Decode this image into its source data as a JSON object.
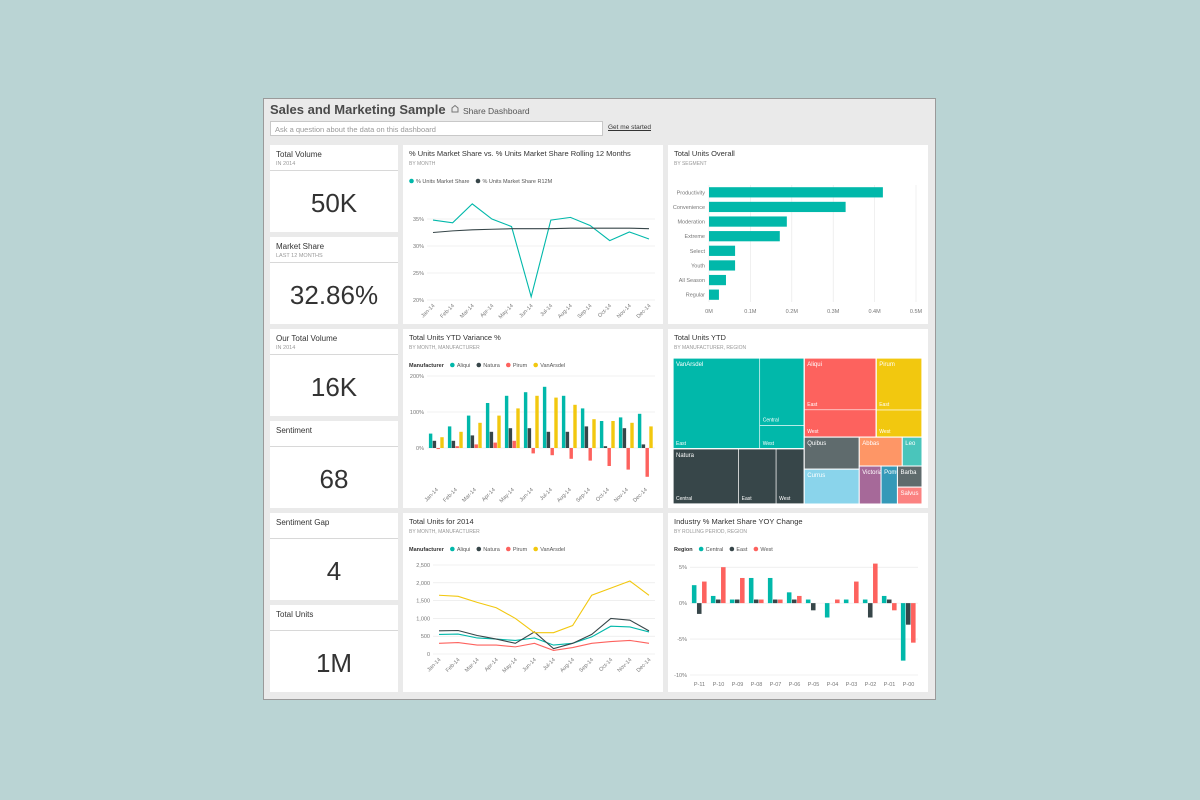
{
  "header": {
    "title": "Sales and Marketing Sample",
    "share": "Share Dashboard",
    "qa_placeholder": "Ask a question about the data on this dashboard",
    "qa_link": "Get me started"
  },
  "kpis": [
    {
      "title": "Total Volume",
      "subtitle": "IN 2014",
      "value": "50K"
    },
    {
      "title": "Market Share",
      "subtitle": "LAST 12 MONTHS",
      "value": "32.86%"
    },
    {
      "title": "Our Total Volume",
      "subtitle": "IN 2014",
      "value": "16K"
    },
    {
      "title": "Sentiment",
      "value": "68"
    },
    {
      "title": "Sentiment Gap",
      "value": "4"
    },
    {
      "title": "Total Units",
      "value": "1M"
    }
  ],
  "chart_data": [
    {
      "type": "line",
      "title": "% Units Market Share vs. % Units Market Share Rolling 12 Months",
      "subtitle": "BY MONTH",
      "categories": [
        "Jan-14",
        "Feb-14",
        "Mar-14",
        "Apr-14",
        "May-14",
        "Jun-14",
        "Jul-14",
        "Aug-14",
        "Sep-14",
        "Oct-14",
        "Nov-14",
        "Dec-14"
      ],
      "series": [
        {
          "name": "% Units Market Share",
          "color": "#01b8aa",
          "values": [
            34.8,
            34.3,
            37.8,
            35,
            33.6,
            20.6,
            34.8,
            35.3,
            33.8,
            31,
            32.6,
            31.3
          ]
        },
        {
          "name": "% Units Market Share R12M",
          "color": "#374649",
          "values": [
            32.5,
            32.8,
            33,
            33.1,
            33.2,
            33.2,
            33.2,
            33.3,
            33.3,
            33.3,
            33.3,
            33.2
          ]
        }
      ],
      "ylim": [
        20,
        40
      ],
      "yticks": [
        {
          "value": 20,
          "label": "20%"
        },
        {
          "value": 25,
          "label": "25%"
        },
        {
          "value": 30,
          "label": "30%"
        },
        {
          "value": 35,
          "label": "35%"
        }
      ],
      "grid": true
    },
    {
      "type": "bar",
      "title": "Total Units YTD Variance %",
      "subtitle": "BY MONTH, MANUFACTURER",
      "legend_title": "Manufacturer",
      "categories": [
        "Jan-14",
        "Feb-14",
        "Mar-14",
        "Apr-14",
        "May-14",
        "Jun-14",
        "Jul-14",
        "Aug-14",
        "Sep-14",
        "Oct-14",
        "Nov-14",
        "Dec-14"
      ],
      "series": [
        {
          "name": "Aliqui",
          "color": "#01b8aa",
          "values": [
            40,
            60,
            90,
            125,
            145,
            155,
            170,
            145,
            110,
            75,
            85,
            95
          ]
        },
        {
          "name": "Natura",
          "color": "#374649",
          "values": [
            20,
            20,
            35,
            45,
            55,
            55,
            45,
            45,
            60,
            5,
            55,
            10
          ]
        },
        {
          "name": "Pirum",
          "color": "#fd625e",
          "values": [
            -3,
            5,
            10,
            15,
            20,
            -15,
            -20,
            -30,
            -35,
            -50,
            -60,
            -80
          ]
        },
        {
          "name": "VanArsdel",
          "color": "#f2c80f",
          "values": [
            30,
            45,
            70,
            90,
            110,
            145,
            140,
            120,
            80,
            75,
            70,
            60
          ]
        }
      ],
      "ylim": [
        -100,
        200
      ],
      "yticks": [
        {
          "value": 0,
          "label": "0%"
        },
        {
          "value": 100,
          "label": "100%"
        },
        {
          "value": 200,
          "label": "200%"
        }
      ],
      "grid": true
    },
    {
      "type": "line",
      "title": "Total Units for 2014",
      "subtitle": "BY MONTH, MANUFACTURER",
      "legend_title": "Manufacturer",
      "categories": [
        "Jan-14",
        "Feb-14",
        "Mar-14",
        "Apr-14",
        "May-14",
        "Jun-14",
        "Jul-14",
        "Aug-14",
        "Sep-14",
        "Oct-14",
        "Nov-14",
        "Dec-14"
      ],
      "series": [
        {
          "name": "Aliqui",
          "color": "#01b8aa",
          "values": [
            550,
            560,
            450,
            420,
            380,
            450,
            250,
            300,
            480,
            780,
            760,
            620
          ]
        },
        {
          "name": "Natura",
          "color": "#374649",
          "values": [
            650,
            660,
            520,
            420,
            300,
            620,
            150,
            300,
            550,
            1000,
            950,
            650
          ]
        },
        {
          "name": "Pirum",
          "color": "#fd625e",
          "values": [
            300,
            320,
            250,
            250,
            200,
            300,
            100,
            180,
            300,
            350,
            380,
            300
          ]
        },
        {
          "name": "VanArsdel",
          "color": "#f2c80f",
          "values": [
            1650,
            1620,
            1450,
            1300,
            1000,
            600,
            600,
            800,
            1650,
            1850,
            2050,
            1650
          ]
        }
      ],
      "ylim": [
        0,
        2500
      ],
      "yticks": [
        0,
        500,
        {
          "value": 1000,
          "label": "1,000"
        },
        {
          "value": 1500,
          "label": "1,500"
        },
        {
          "value": 2000,
          "label": "2,000"
        },
        {
          "value": 2500,
          "label": "2,500"
        }
      ],
      "grid": true
    },
    {
      "type": "hbar",
      "title": "Total Units Overall",
      "subtitle": "BY SEGMENT",
      "categories": [
        "Productivity",
        "Convenience",
        "Moderation",
        "Extreme",
        "Select",
        "Youth",
        "All Season",
        "Regular"
      ],
      "values": [
        420000,
        330000,
        188000,
        171000,
        63000,
        63000,
        41000,
        24000
      ],
      "color": "#01b8aa",
      "xlim": [
        0,
        500000
      ],
      "xticks": [
        {
          "value": 0,
          "label": "0M"
        },
        {
          "value": 100000,
          "label": "0.1M"
        },
        {
          "value": 200000,
          "label": "0.2M"
        },
        {
          "value": 300000,
          "label": "0.3M"
        },
        {
          "value": 400000,
          "label": "0.4M"
        },
        {
          "value": 500000,
          "label": "0.5M"
        }
      ],
      "grid": true
    },
    {
      "type": "treemap",
      "title": "Total Units YTD",
      "subtitle": "BY MANUFACTURER, REGION",
      "items": [
        {
          "name": "VanArsdel",
          "color": "#01b8aa",
          "children": [
            {
              "name": "East",
              "value": 7600
            },
            {
              "name": "Central",
              "value": 2900
            },
            {
              "name": "West",
              "value": 1000
            }
          ]
        },
        {
          "name": "Natura",
          "color": "#374649",
          "children": [
            {
              "name": "Central",
              "value": 3500
            },
            {
              "name": "East",
              "value": 2000
            },
            {
              "name": "West",
              "value": 1500
            }
          ]
        },
        {
          "name": "Aliqui",
          "color": "#fd625e",
          "children": [
            {
              "name": "East",
              "value": 3600
            },
            {
              "name": "West",
              "value": 1900
            }
          ]
        },
        {
          "name": "Pirum",
          "color": "#f2c80f",
          "children": [
            {
              "name": "East",
              "value": 2300
            },
            {
              "name": "West",
              "value": 1200
            }
          ]
        },
        {
          "name": "Quibus",
          "color": "#5f6b6d",
          "value": 1700
        },
        {
          "name": "Currus",
          "color": "#8ad4eb",
          "value": 1850
        },
        {
          "name": "Abbas",
          "color": "#fe9666",
          "value": 1200
        },
        {
          "name": "Leo",
          "color": "#4ac5bb",
          "value": 550
        },
        {
          "name": "Victoria",
          "color": "#a66999",
          "value": 800
        },
        {
          "name": "Pomum",
          "color": "#3599b8",
          "value": 600
        },
        {
          "name": "Barba",
          "color": "#5f6b6d",
          "value": 500
        },
        {
          "name": "Salvus",
          "color": "#fb8281",
          "value": 400
        }
      ]
    },
    {
      "type": "bar",
      "title": "Industry % Market Share YOY Change",
      "subtitle": "BY ROLLING PERIOD, REGION",
      "legend_title": "Region",
      "categories": [
        "P-11",
        "P-10",
        "P-09",
        "P-08",
        "P-07",
        "P-06",
        "P-05",
        "P-04",
        "P-03",
        "P-02",
        "P-01",
        "P-00"
      ],
      "series": [
        {
          "name": "Central",
          "color": "#01b8aa",
          "values": [
            2.5,
            1.0,
            0.5,
            3.5,
            3.5,
            1.5,
            0.5,
            -2.0,
            0.5,
            0.5,
            1.0,
            -8.0
          ]
        },
        {
          "name": "East",
          "color": "#374649",
          "values": [
            -1.5,
            0.5,
            0.5,
            0.5,
            0.5,
            0.5,
            -1.0,
            0,
            0,
            -2.0,
            0.5,
            -3.0
          ]
        },
        {
          "name": "West",
          "color": "#fd625e",
          "values": [
            3.0,
            5.0,
            3.5,
            0.5,
            0.5,
            1.0,
            0,
            0.5,
            3.0,
            5.5,
            -1.0,
            -5.5
          ]
        }
      ],
      "ylim": [
        -10,
        6
      ],
      "yticks": [
        {
          "value": -10,
          "label": "-10%"
        },
        {
          "value": -5,
          "label": "-5%"
        },
        {
          "value": 0,
          "label": "0%"
        },
        {
          "value": 5,
          "label": "5%"
        }
      ],
      "grid": true
    }
  ]
}
